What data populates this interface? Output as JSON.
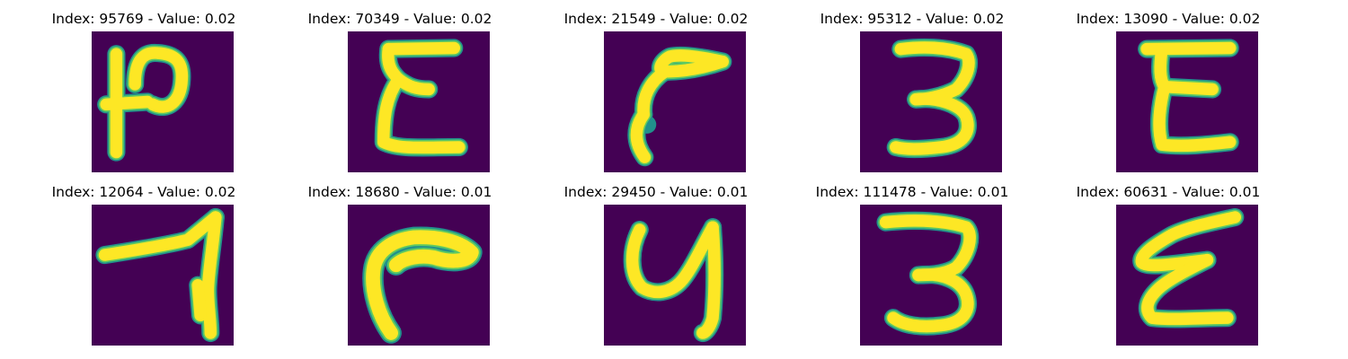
{
  "figure": {
    "panels": [
      {
        "title": "Index: 95769 - Value: 0.02",
        "glyph": "handwritten-glyph-1"
      },
      {
        "title": "Index: 70349 - Value: 0.02",
        "glyph": "handwritten-glyph-2"
      },
      {
        "title": "Index: 21549 - Value: 0.02",
        "glyph": "handwritten-glyph-3"
      },
      {
        "title": "Index: 95312 - Value: 0.02",
        "glyph": "handwritten-glyph-4"
      },
      {
        "title": "Index: 13090 - Value: 0.02",
        "glyph": "handwritten-glyph-5"
      },
      {
        "title": "Index: 12064 - Value: 0.02",
        "glyph": "handwritten-glyph-6"
      },
      {
        "title": "Index: 18680 - Value: 0.01",
        "glyph": "handwritten-glyph-7"
      },
      {
        "title": "Index: 29450 - Value: 0.01",
        "glyph": "handwritten-glyph-8"
      },
      {
        "title": "Index: 111478 - Value: 0.01",
        "glyph": "handwritten-glyph-9"
      },
      {
        "title": "Index: 60631 - Value: 0.01",
        "glyph": "handwritten-glyph-10"
      }
    ],
    "colors": {
      "background": "#440154",
      "edge": "#21918c",
      "mid": "#5ec962",
      "core": "#fde725"
    }
  }
}
